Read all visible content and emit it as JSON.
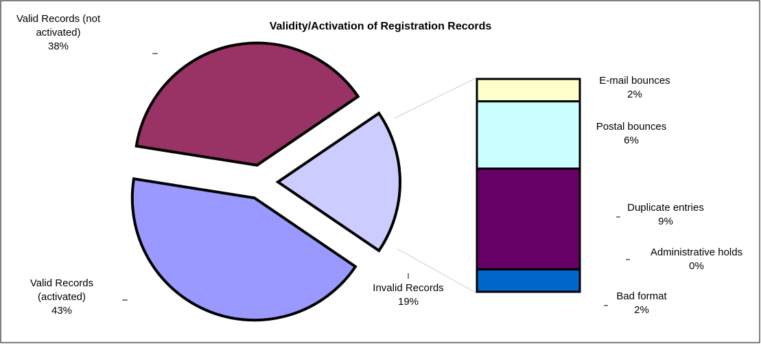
{
  "chart_data": {
    "type": "pie_of_bar",
    "title": "Validity/Activation of Registration Records",
    "categories": [
      "Valid Records (not activated)",
      "Valid Records (activated)",
      "Invalid Records"
    ],
    "values": [
      38,
      43,
      19
    ],
    "value_labels": [
      "38%",
      "43%",
      "19%"
    ],
    "colors": [
      "#993366",
      "#9999ff",
      "#ccccff"
    ],
    "breakdown": {
      "categories": [
        "E-mail bounces",
        "Postal bounces",
        "Duplicate entries",
        "Administrative holds",
        "Bad format"
      ],
      "values": [
        2,
        6,
        9,
        0,
        2
      ],
      "value_labels": [
        "2%",
        "6%",
        "9%",
        "0%",
        "2%"
      ],
      "colors": [
        "#ffffcc",
        "#ccffff",
        "#660066",
        "#333399",
        "#0066cc"
      ]
    }
  }
}
